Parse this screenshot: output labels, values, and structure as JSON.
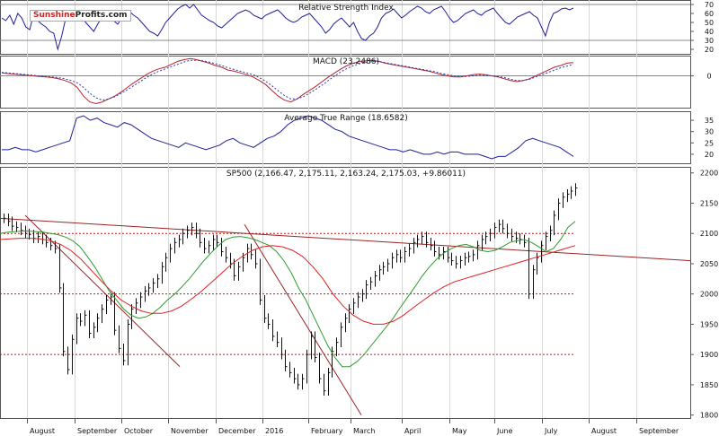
{
  "watermark": {
    "part1": "Sunshine",
    "part2": "Profits.com"
  },
  "colors": {
    "price": "#111111",
    "ma_fast": "#2e9b2e",
    "ma_slow": "#e02020",
    "indicator": "#1f1f9c",
    "trendline": "#9b2323",
    "ref_line": "#b51c1c"
  },
  "chart_data": [
    {
      "type": "line",
      "title": "Relative Strength Index",
      "y_ticks": [
        "70",
        "60",
        "50",
        "40",
        "30",
        "20"
      ],
      "ylim": [
        15,
        75
      ],
      "reference_lines": [
        70,
        30
      ],
      "series": [
        {
          "values": [
            55,
            52,
            58,
            48,
            60,
            55,
            45,
            42,
            60,
            52,
            48,
            45,
            40,
            38,
            20,
            35,
            55,
            60,
            58,
            62,
            55,
            50,
            45,
            40,
            48,
            56,
            62,
            58,
            52,
            48,
            55,
            60,
            62,
            58,
            55,
            50,
            45,
            40,
            38,
            35,
            42,
            50,
            55,
            60,
            65,
            68,
            70,
            66,
            70,
            64,
            58,
            55,
            52,
            50,
            46,
            44,
            48,
            52,
            56,
            60,
            62,
            64,
            62,
            58,
            56,
            54,
            58,
            60,
            62,
            64,
            60,
            55,
            52,
            50,
            52,
            56,
            58,
            60,
            55,
            50,
            45,
            38,
            42,
            48,
            52,
            55,
            50,
            45,
            50,
            40,
            32,
            30,
            35,
            38,
            45,
            55,
            60,
            62,
            65,
            60,
            55,
            58,
            62,
            65,
            68,
            66,
            62,
            60,
            64,
            66,
            68,
            62,
            55,
            50,
            52,
            56,
            60,
            62,
            64,
            60,
            58,
            62,
            64,
            66,
            60,
            55,
            50,
            48,
            52,
            56,
            58,
            60,
            62,
            58,
            55,
            45,
            35,
            50,
            60,
            62,
            65,
            66,
            64,
            66
          ]
        }
      ]
    },
    {
      "type": "line",
      "title": "MACD (23.2486)",
      "y_ticks": [
        "0"
      ],
      "ylim": [
        -55,
        35
      ],
      "series": [
        {
          "style": "solid",
          "values": [
            5,
            4,
            3,
            2,
            1,
            0,
            -1,
            -2,
            -3,
            -5,
            -8,
            -12,
            -20,
            -35,
            -45,
            -48,
            -45,
            -40,
            -35,
            -28,
            -20,
            -12,
            -5,
            2,
            8,
            12,
            15,
            20,
            25,
            28,
            30,
            28,
            25,
            22,
            18,
            15,
            10,
            8,
            5,
            2,
            -2,
            -8,
            -15,
            -25,
            -35,
            -42,
            -45,
            -40,
            -32,
            -25,
            -18,
            -10,
            -2,
            5,
            12,
            18,
            22,
            25,
            26,
            27,
            25,
            22,
            20,
            18,
            16,
            14,
            12,
            10,
            8,
            5,
            2,
            0,
            -2,
            -2,
            0,
            2,
            3,
            2,
            0,
            -2,
            -5,
            -8,
            -10,
            -8,
            -5,
            0,
            5,
            10,
            15,
            18,
            22,
            23
          ]
        },
        {
          "style": "dashed",
          "values": [
            6,
            5,
            4,
            3,
            2,
            1,
            0,
            -1,
            -2,
            -3,
            -5,
            -8,
            -12,
            -20,
            -30,
            -38,
            -42,
            -40,
            -36,
            -30,
            -24,
            -17,
            -10,
            -3,
            3,
            8,
            12,
            16,
            20,
            24,
            27,
            27,
            26,
            24,
            21,
            18,
            14,
            11,
            8,
            5,
            2,
            -3,
            -9,
            -17,
            -26,
            -34,
            -40,
            -40,
            -36,
            -30,
            -23,
            -16,
            -8,
            0,
            7,
            13,
            18,
            21,
            23,
            25,
            25,
            23,
            21,
            19,
            17,
            15,
            13,
            11,
            9,
            7,
            4,
            2,
            0,
            -1,
            -1,
            0,
            1,
            1,
            0,
            -1,
            -3,
            -6,
            -8,
            -8,
            -6,
            -2,
            2,
            6,
            10,
            14,
            17,
            20
          ]
        }
      ]
    },
    {
      "type": "line",
      "title": "Average True Range (18.6582)",
      "y_ticks": [
        "35",
        "30",
        "25",
        "20"
      ],
      "ylim": [
        16,
        39
      ],
      "series": [
        {
          "values": [
            22,
            22,
            23,
            22,
            22,
            21,
            22,
            23,
            24,
            25,
            26,
            36,
            37,
            35,
            36,
            34,
            33,
            32,
            34,
            33,
            31,
            29,
            27,
            26,
            25,
            24,
            23,
            25,
            24,
            23,
            22,
            23,
            24,
            26,
            27,
            25,
            24,
            23,
            25,
            27,
            28,
            30,
            33,
            35,
            36,
            37,
            36,
            35,
            33,
            31,
            30,
            28,
            27,
            26,
            25,
            24,
            23,
            22,
            22,
            21,
            22,
            21,
            20,
            20,
            21,
            20,
            21,
            21,
            20,
            20,
            20,
            19,
            18,
            19,
            19,
            21,
            23,
            26,
            27,
            26,
            25,
            24,
            23,
            21,
            19
          ]
        }
      ]
    },
    {
      "type": "line",
      "title": "SP500 (2,166.47, 2,175.11, 2,163.24, 2,175.03, +9.86011)",
      "x_ticks": [
        "August",
        "September",
        "October",
        "November",
        "December",
        "2016",
        "February",
        "March",
        "April",
        "May",
        "June",
        "July",
        "August",
        "September"
      ],
      "y_ticks": [
        "2200",
        "2150",
        "2100",
        "2050",
        "2000",
        "1950",
        "1900",
        "1850",
        "1800"
      ],
      "ylim": [
        1795,
        2210
      ],
      "price": [
        2125,
        2120,
        2112,
        2110,
        2105,
        2100,
        2098,
        2092,
        2095,
        2090,
        2085,
        2080,
        2075,
        2010,
        1905,
        1875,
        1925,
        1960,
        1955,
        1965,
        1935,
        1945,
        1960,
        1975,
        1990,
        1995,
        1940,
        1910,
        1890,
        1950,
        1975,
        1985,
        1995,
        2005,
        2010,
        2018,
        2025,
        2045,
        2060,
        2075,
        2085,
        2090,
        2100,
        2105,
        2110,
        2100,
        2085,
        2075,
        2080,
        2090,
        2085,
        2070,
        2060,
        2050,
        2030,
        2045,
        2060,
        2075,
        2065,
        2050,
        1990,
        1960,
        1950,
        1930,
        1920,
        1900,
        1880,
        1870,
        1860,
        1850,
        1860,
        1900,
        1930,
        1895,
        1860,
        1840,
        1870,
        1905,
        1920,
        1945,
        1960,
        1975,
        1985,
        1995,
        2000,
        2015,
        2020,
        2030,
        2040,
        2045,
        2050,
        2060,
        2065,
        2060,
        2070,
        2075,
        2085,
        2090,
        2095,
        2085,
        2080,
        2070,
        2065,
        2070,
        2060,
        2055,
        2050,
        2055,
        2060,
        2062,
        2065,
        2080,
        2090,
        2095,
        2100,
        2110,
        2115,
        2108,
        2100,
        2095,
        2092,
        2090,
        2085,
        2000,
        2040,
        2060,
        2080,
        2095,
        2105,
        2130,
        2150,
        2160,
        2165,
        2170,
        2175
      ],
      "ma_fast": [
        2100,
        2102,
        2103,
        2104,
        2104,
        2103,
        2102,
        2100,
        2098,
        2094,
        2088,
        2078,
        2062,
        2045,
        2025,
        2005,
        1990,
        1975,
        1965,
        1960,
        1962,
        1968,
        1978,
        1990,
        2000,
        2012,
        2025,
        2040,
        2055,
        2068,
        2080,
        2090,
        2094,
        2095,
        2093,
        2090,
        2085,
        2080,
        2070,
        2055,
        2035,
        2010,
        1990,
        1965,
        1940,
        1915,
        1895,
        1880,
        1880,
        1888,
        1900,
        1915,
        1930,
        1945,
        1960,
        1978,
        1995,
        2012,
        2030,
        2045,
        2058,
        2068,
        2075,
        2080,
        2082,
        2078,
        2072,
        2070,
        2072,
        2078,
        2085,
        2088,
        2090,
        2085,
        2078,
        2070,
        2075,
        2090,
        2110,
        2120
      ],
      "ma_slow": [
        2090,
        2091,
        2092,
        2092,
        2091,
        2088,
        2082,
        2072,
        2058,
        2040,
        2022,
        2005,
        1990,
        1980,
        1972,
        1968,
        1968,
        1972,
        1980,
        1992,
        2005,
        2020,
        2035,
        2050,
        2062,
        2072,
        2078,
        2080,
        2078,
        2072,
        2062,
        2045,
        2025,
        2000,
        1980,
        1965,
        1955,
        1950,
        1950,
        1955,
        1965,
        1978,
        1990,
        2002,
        2012,
        2020,
        2025,
        2030,
        2035,
        2040,
        2045,
        2050,
        2055,
        2060,
        2065,
        2070,
        2075,
        2080
      ],
      "horizontal_lines": [
        2100,
        2000,
        1900
      ]
    }
  ]
}
